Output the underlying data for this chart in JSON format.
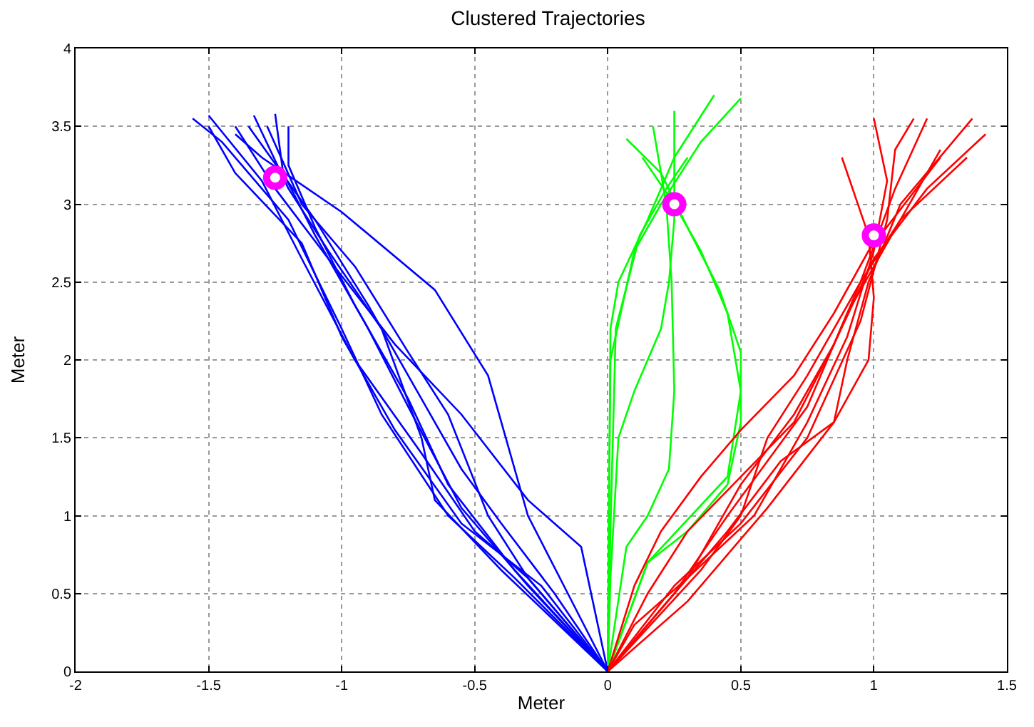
{
  "chart_data": {
    "type": "line",
    "title": "Clustered Trajectories",
    "xlabel": "Meter",
    "ylabel": "Meter",
    "xlim": [
      -2,
      1.5
    ],
    "xticks": [
      -2,
      -1.5,
      -1,
      -0.5,
      0,
      0.5,
      1,
      1.5
    ],
    "ylim": [
      0,
      4
    ],
    "yticks": [
      0,
      0.5,
      1,
      1.5,
      2,
      2.5,
      3,
      3.5,
      4
    ],
    "grid": true,
    "marker": "none",
    "line_style": "solid",
    "series": [
      {
        "color": "#0000ff",
        "x": [
          0,
          -0.15,
          -0.3,
          -0.45,
          -0.65,
          -1.0,
          -1.3,
          -1.4
        ],
        "values": [
          0,
          0.5,
          1.0,
          1.9,
          2.45,
          2.95,
          3.3,
          3.45
        ]
      },
      {
        "color": "#0000ff",
        "x": [
          0,
          -0.1,
          -0.3,
          -0.55,
          -0.8,
          -1.05,
          -1.25,
          -1.4
        ],
        "values": [
          0,
          0.8,
          1.1,
          1.65,
          2.1,
          2.65,
          3.1,
          3.5
        ]
      },
      {
        "color": "#0000ff",
        "x": [
          0,
          -0.3,
          -0.5,
          -0.7,
          -0.95,
          -1.15,
          -1.3,
          -1.5
        ],
        "values": [
          0,
          0.6,
          0.9,
          1.4,
          2.0,
          2.65,
          3.15,
          3.57
        ]
      },
      {
        "color": "#0000ff",
        "x": [
          0,
          -0.35,
          -0.6,
          -0.85,
          -1.0,
          -1.2,
          -1.45,
          -1.56
        ],
        "values": [
          0,
          0.6,
          1.0,
          1.65,
          2.2,
          2.9,
          3.4,
          3.55
        ]
      },
      {
        "color": "#0000ff",
        "x": [
          0,
          -0.3,
          -0.55,
          -0.75,
          -0.9,
          -1.1,
          -1.22,
          -1.25
        ],
        "values": [
          0,
          0.55,
          1.05,
          1.7,
          2.2,
          2.8,
          3.2,
          3.58
        ]
      },
      {
        "color": "#0000ff",
        "x": [
          0,
          -0.4,
          -0.65,
          -0.7,
          -0.85,
          -1.05,
          -1.2,
          -1.33
        ],
        "values": [
          0,
          0.65,
          1.1,
          1.5,
          2.2,
          2.7,
          3.1,
          3.57
        ]
      },
      {
        "color": "#0000ff",
        "x": [
          0,
          -0.3,
          -0.45,
          -0.6,
          -0.75,
          -0.95,
          -1.15,
          -1.28
        ],
        "values": [
          0,
          0.6,
          1.0,
          1.65,
          2.05,
          2.6,
          3.0,
          3.5
        ]
      },
      {
        "color": "#0000ff",
        "x": [
          0,
          -0.25,
          -0.55,
          -0.8,
          -1.0,
          -1.15,
          -1.4,
          -1.5
        ],
        "values": [
          0,
          0.55,
          0.95,
          1.55,
          2.15,
          2.75,
          3.2,
          3.5
        ]
      },
      {
        "color": "#0000ff",
        "x": [
          0,
          -0.35,
          -0.6,
          -0.75,
          -0.95,
          -1.1,
          -1.2,
          -1.2
        ],
        "values": [
          0,
          0.65,
          1.2,
          1.75,
          2.35,
          2.85,
          3.25,
          3.5
        ]
      },
      {
        "color": "#0000ff",
        "x": [
          0,
          -0.2,
          -0.4,
          -0.55,
          -0.7,
          -0.9,
          -1.1,
          -1.35
        ],
        "values": [
          0,
          0.5,
          0.95,
          1.3,
          1.75,
          2.35,
          2.9,
          3.5
        ]
      },
      {
        "color": "#00ff00",
        "x": [
          0,
          0.005,
          0.01,
          0.04,
          0.15,
          0.25,
          0.4
        ],
        "values": [
          0,
          1.0,
          2.2,
          2.5,
          2.9,
          3.3,
          3.7
        ]
      },
      {
        "color": "#00ff00",
        "x": [
          0,
          0.01,
          0.04,
          0.1,
          0.2,
          0.23,
          0.25,
          0.25
        ],
        "values": [
          0,
          0.6,
          1.5,
          1.8,
          2.2,
          2.5,
          2.9,
          3.6
        ]
      },
      {
        "color": "#00ff00",
        "x": [
          0,
          0.07,
          0.15,
          0.23,
          0.25,
          0.24,
          0.22,
          0.17
        ],
        "values": [
          0,
          0.8,
          1.0,
          1.3,
          1.8,
          2.5,
          3.0,
          3.5
        ]
      },
      {
        "color": "#00ff00",
        "x": [
          0,
          0.15,
          0.3,
          0.45,
          0.5,
          0.5,
          0.42,
          0.3,
          0.2,
          0.07
        ],
        "values": [
          0,
          0.7,
          0.9,
          1.2,
          1.6,
          2.05,
          2.45,
          2.85,
          3.2,
          3.42
        ]
      },
      {
        "color": "#00ff00",
        "x": [
          0,
          0.15,
          0.45,
          0.5,
          0.45,
          0.35,
          0.25,
          0.13
        ],
        "values": [
          0,
          0.7,
          1.25,
          1.8,
          2.3,
          2.7,
          3.0,
          3.3
        ]
      },
      {
        "color": "#00ff00",
        "x": [
          0,
          0.005,
          0.01,
          0.1,
          0.2,
          0.35,
          0.5
        ],
        "values": [
          0,
          1.2,
          2.0,
          2.7,
          3.0,
          3.4,
          3.68
        ]
      },
      {
        "color": "#00ff00",
        "x": [
          0,
          0.01,
          0.03,
          0.12,
          0.22,
          0.3
        ],
        "values": [
          0,
          0.9,
          2.2,
          2.8,
          3.1,
          3.3
        ]
      },
      {
        "color": "#ff0000",
        "x": [
          0,
          0.15,
          0.3,
          0.5,
          0.7,
          0.85,
          0.95,
          1.08,
          1.2
        ],
        "values": [
          0,
          0.5,
          0.9,
          1.25,
          1.6,
          2.1,
          2.5,
          3.1,
          3.55
        ]
      },
      {
        "color": "#ff0000",
        "x": [
          0,
          0.3,
          0.45,
          0.65,
          0.85,
          0.98,
          1.0,
          0.98,
          0.88
        ],
        "values": [
          0,
          0.6,
          0.9,
          1.35,
          1.6,
          2.0,
          2.4,
          2.8,
          3.3
        ]
      },
      {
        "color": "#ff0000",
        "x": [
          0,
          0.35,
          0.5,
          0.6,
          0.75,
          0.95,
          1.1,
          1.35
        ],
        "values": [
          0,
          0.65,
          1.0,
          1.5,
          1.9,
          2.5,
          2.9,
          3.3
        ]
      },
      {
        "color": "#ff0000",
        "x": [
          0,
          0.25,
          0.45,
          0.6,
          0.75,
          0.9,
          1.1,
          1.25
        ],
        "values": [
          0,
          0.5,
          1.0,
          1.35,
          1.7,
          2.3,
          2.9,
          3.35
        ]
      },
      {
        "color": "#ff0000",
        "x": [
          0,
          0.1,
          0.3,
          0.5,
          0.7,
          0.85,
          1.0,
          1.2,
          1.42
        ],
        "values": [
          0,
          0.3,
          0.6,
          1.2,
          1.65,
          2.1,
          2.65,
          3.1,
          3.45
        ]
      },
      {
        "color": "#ff0000",
        "x": [
          0,
          0.25,
          0.5,
          0.75,
          0.95,
          1.05,
          1.08,
          1.15
        ],
        "values": [
          0,
          0.55,
          0.95,
          1.5,
          2.25,
          2.9,
          3.35,
          3.55
        ]
      },
      {
        "color": "#ff0000",
        "x": [
          0,
          0.3,
          0.45,
          0.6,
          0.85,
          0.9,
          0.98,
          1.1,
          1.37
        ],
        "values": [
          0,
          0.45,
          0.75,
          1.05,
          1.6,
          2.0,
          2.5,
          3.0,
          3.55
        ]
      },
      {
        "color": "#ff0000",
        "x": [
          0,
          0.3,
          0.55,
          0.75,
          0.9,
          1.0,
          1.05,
          1.0
        ],
        "values": [
          0,
          0.6,
          1.0,
          1.6,
          2.15,
          2.7,
          3.15,
          3.55
        ]
      },
      {
        "color": "#ff0000",
        "x": [
          0,
          0.1,
          0.2,
          0.35,
          0.5,
          0.7,
          0.85,
          0.98,
          1.25
        ],
        "values": [
          0,
          0.55,
          0.9,
          1.25,
          1.55,
          1.9,
          2.3,
          2.7,
          3.3
        ]
      },
      {
        "type": "scatter",
        "marker": "circle",
        "color": "#ff00ff",
        "x": [
          -1.25,
          0.25,
          1.0
        ],
        "values": [
          3.17,
          3.0,
          2.8
        ]
      }
    ]
  }
}
